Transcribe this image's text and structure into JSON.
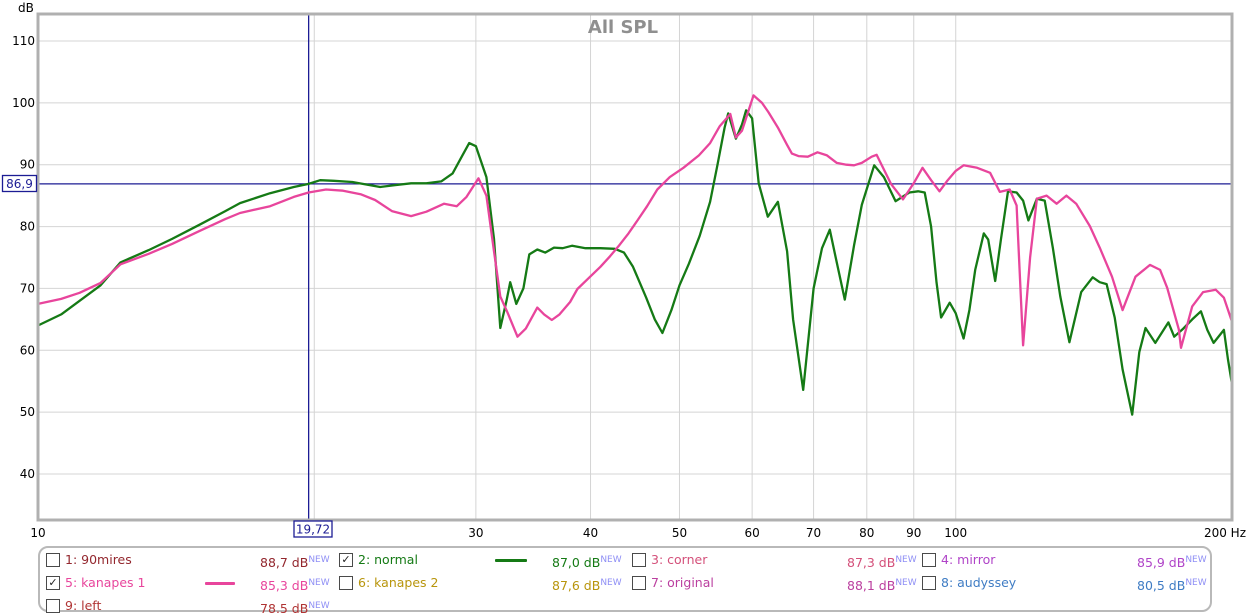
{
  "chart": {
    "title": "All SPL",
    "y_unit": "dB",
    "x_unit_suffix": "Hz"
  },
  "cursor": {
    "freq": 19.72,
    "db": 86.9,
    "freq_label": "19,72",
    "db_label": "86,9"
  },
  "chart_data": {
    "type": "line",
    "x_scale": "log",
    "title": "All SPL",
    "xlabel": "Hz",
    "ylabel": "dB",
    "xlim": [
      10,
      200
    ],
    "ylim_visible": [
      32.6,
      114.4
    ],
    "y_ticks": [
      110,
      100,
      90,
      80,
      70,
      60,
      50,
      40
    ],
    "x_ticks_labeled": [
      10,
      30,
      40,
      50,
      60,
      70,
      80,
      90,
      100,
      200
    ],
    "x_gridlines": [
      20,
      30,
      40,
      50,
      60,
      70,
      80,
      90,
      100,
      200
    ],
    "grid": true,
    "legend_position": "bottom",
    "series": [
      {
        "name": "2: normal",
        "color": "#157a15",
        "points": [
          [
            10,
            64.0
          ],
          [
            10.6,
            65.8
          ],
          [
            11.1,
            68.0
          ],
          [
            11.7,
            70.5
          ],
          [
            12.3,
            74.2
          ],
          [
            13.2,
            76.2
          ],
          [
            14,
            78.0
          ],
          [
            15,
            80.3
          ],
          [
            16,
            82.5
          ],
          [
            16.6,
            83.8
          ],
          [
            17.9,
            85.4
          ],
          [
            19,
            86.4
          ],
          [
            19.72,
            86.9
          ],
          [
            20.3,
            87.5
          ],
          [
            21,
            87.4
          ],
          [
            22,
            87.2
          ],
          [
            23.6,
            86.4
          ],
          [
            24.5,
            86.7
          ],
          [
            25.5,
            87.0
          ],
          [
            26.5,
            87.0
          ],
          [
            27.5,
            87.3
          ],
          [
            28.3,
            88.6
          ],
          [
            29,
            91.5
          ],
          [
            29.5,
            93.5
          ],
          [
            30,
            93.0
          ],
          [
            30.8,
            88.0
          ],
          [
            31.4,
            78.0
          ],
          [
            31.9,
            63.6
          ],
          [
            32.4,
            68.0
          ],
          [
            32.7,
            71.0
          ],
          [
            33.2,
            67.5
          ],
          [
            33.8,
            70.0
          ],
          [
            34.3,
            75.5
          ],
          [
            35,
            76.3
          ],
          [
            35.7,
            75.8
          ],
          [
            36.5,
            76.6
          ],
          [
            37.3,
            76.5
          ],
          [
            38.2,
            76.9
          ],
          [
            39.5,
            76.5
          ],
          [
            41,
            76.5
          ],
          [
            42.5,
            76.4
          ],
          [
            43.5,
            75.8
          ],
          [
            44.5,
            73.5
          ],
          [
            46,
            68.5
          ],
          [
            47,
            65.0
          ],
          [
            47.9,
            62.8
          ],
          [
            49,
            66.5
          ],
          [
            50,
            70.5
          ],
          [
            51.2,
            74.0
          ],
          [
            52.6,
            78.5
          ],
          [
            54,
            84.0
          ],
          [
            55,
            90.0
          ],
          [
            56,
            96.0
          ],
          [
            56.5,
            98.3
          ],
          [
            57.6,
            94.2
          ],
          [
            58.5,
            96.5
          ],
          [
            59.1,
            98.8
          ],
          [
            60,
            97.5
          ],
          [
            61,
            87.0
          ],
          [
            62.4,
            81.6
          ],
          [
            64,
            84.0
          ],
          [
            65.5,
            76.0
          ],
          [
            66.5,
            65.0
          ],
          [
            68.2,
            53.6
          ],
          [
            70,
            70.0
          ],
          [
            71.5,
            76.5
          ],
          [
            72.9,
            79.5
          ],
          [
            74,
            75.0
          ],
          [
            75.7,
            68.2
          ],
          [
            77.5,
            77.0
          ],
          [
            79,
            83.5
          ],
          [
            81.5,
            89.9
          ],
          [
            83.5,
            88.0
          ],
          [
            86,
            84.1
          ],
          [
            89,
            85.5
          ],
          [
            91,
            85.7
          ],
          [
            92.5,
            85.5
          ],
          [
            94,
            80.0
          ],
          [
            95.3,
            71.0
          ],
          [
            96.4,
            65.3
          ],
          [
            98.5,
            67.7
          ],
          [
            100,
            66.0
          ],
          [
            102,
            61.9
          ],
          [
            103.5,
            66.5
          ],
          [
            105,
            73.0
          ],
          [
            107.3,
            78.9
          ],
          [
            108.5,
            77.9
          ],
          [
            110.4,
            71.2
          ],
          [
            112,
            77.9
          ],
          [
            114,
            85.7
          ],
          [
            116.5,
            85.5
          ],
          [
            118.4,
            84.2
          ],
          [
            120,
            81.0
          ],
          [
            122.6,
            84.5
          ],
          [
            125,
            84.2
          ],
          [
            127.6,
            76.5
          ],
          [
            130,
            68.7
          ],
          [
            133,
            61.3
          ],
          [
            137,
            69.4
          ],
          [
            141,
            71.8
          ],
          [
            143.5,
            71.0
          ],
          [
            146,
            70.7
          ],
          [
            149,
            65.3
          ],
          [
            152,
            56.9
          ],
          [
            155.7,
            49.6
          ],
          [
            158.5,
            59.7
          ],
          [
            161,
            63.6
          ],
          [
            165,
            61.2
          ],
          [
            170.5,
            64.5
          ],
          [
            173,
            62.2
          ],
          [
            177,
            63.5
          ],
          [
            181,
            65.0
          ],
          [
            185,
            66.3
          ],
          [
            188,
            63.3
          ],
          [
            191,
            61.2
          ],
          [
            196,
            63.3
          ],
          [
            198,
            58.5
          ],
          [
            200,
            54.5
          ]
        ]
      },
      {
        "name": "5: kanapes 1",
        "color": "#e8459c",
        "points": [
          [
            10,
            67.5
          ],
          [
            10.6,
            68.3
          ],
          [
            11.1,
            69.3
          ],
          [
            11.7,
            70.9
          ],
          [
            12.3,
            73.9
          ],
          [
            13.2,
            75.6
          ],
          [
            14,
            77.2
          ],
          [
            15,
            79.3
          ],
          [
            16,
            81.2
          ],
          [
            16.6,
            82.2
          ],
          [
            17.9,
            83.3
          ],
          [
            19,
            84.8
          ],
          [
            19.72,
            85.5
          ],
          [
            20.6,
            86.0
          ],
          [
            21.5,
            85.8
          ],
          [
            22.5,
            85.2
          ],
          [
            23.3,
            84.3
          ],
          [
            24.3,
            82.5
          ],
          [
            25.5,
            81.7
          ],
          [
            26.5,
            82.4
          ],
          [
            27.7,
            83.7
          ],
          [
            28.6,
            83.3
          ],
          [
            29.3,
            84.8
          ],
          [
            30.2,
            87.8
          ],
          [
            30.8,
            85.0
          ],
          [
            31.4,
            76.0
          ],
          [
            31.9,
            68.7
          ],
          [
            32.5,
            66.0
          ],
          [
            33.3,
            62.2
          ],
          [
            34,
            63.5
          ],
          [
            35,
            66.9
          ],
          [
            35.6,
            65.8
          ],
          [
            36.3,
            64.9
          ],
          [
            37,
            65.8
          ],
          [
            38,
            67.8
          ],
          [
            38.7,
            69.9
          ],
          [
            39.9,
            71.8
          ],
          [
            41,
            73.5
          ],
          [
            42,
            75.2
          ],
          [
            43,
            77.0
          ],
          [
            44,
            78.9
          ],
          [
            45,
            81.0
          ],
          [
            46.1,
            83.3
          ],
          [
            47.3,
            86.0
          ],
          [
            48.8,
            88.0
          ],
          [
            50.5,
            89.5
          ],
          [
            52.5,
            91.5
          ],
          [
            54,
            93.5
          ],
          [
            55.3,
            96.2
          ],
          [
            56.8,
            98.2
          ],
          [
            57.6,
            94.4
          ],
          [
            58.5,
            95.5
          ],
          [
            60.2,
            101.2
          ],
          [
            61.5,
            100.0
          ],
          [
            62.5,
            98.5
          ],
          [
            64,
            96.0
          ],
          [
            65.5,
            93.2
          ],
          [
            66.3,
            91.8
          ],
          [
            67.4,
            91.4
          ],
          [
            69,
            91.3
          ],
          [
            70.7,
            92.0
          ],
          [
            72.4,
            91.5
          ],
          [
            74.2,
            90.3
          ],
          [
            76,
            90.0
          ],
          [
            77.5,
            89.9
          ],
          [
            79,
            90.3
          ],
          [
            81,
            91.3
          ],
          [
            82,
            91.6
          ],
          [
            85,
            86.9
          ],
          [
            87.6,
            84.4
          ],
          [
            90,
            87.0
          ],
          [
            92,
            89.5
          ],
          [
            94,
            87.5
          ],
          [
            96,
            85.7
          ],
          [
            98,
            87.5
          ],
          [
            100,
            89.0
          ],
          [
            102,
            89.9
          ],
          [
            105.5,
            89.5
          ],
          [
            109,
            88.7
          ],
          [
            111.7,
            85.6
          ],
          [
            114.5,
            86.0
          ],
          [
            116.5,
            83.4
          ],
          [
            118.4,
            60.8
          ],
          [
            120.5,
            75.0
          ],
          [
            122.6,
            84.5
          ],
          [
            125.6,
            85.0
          ],
          [
            128.8,
            83.7
          ],
          [
            132,
            85.0
          ],
          [
            135.3,
            83.7
          ],
          [
            140,
            80.1
          ],
          [
            143.5,
            76.6
          ],
          [
            148,
            71.9
          ],
          [
            152,
            66.5
          ],
          [
            157,
            71.9
          ],
          [
            162.8,
            73.8
          ],
          [
            167,
            73.0
          ],
          [
            170,
            70.1
          ],
          [
            175,
            63.4
          ],
          [
            176,
            60.4
          ],
          [
            181,
            67.1
          ],
          [
            186,
            69.4
          ],
          [
            192,
            69.8
          ],
          [
            196,
            68.5
          ],
          [
            200,
            64.6
          ]
        ]
      }
    ]
  },
  "legend": {
    "new_tag": "NEW",
    "new_color": "#8f8ff5",
    "entries": [
      {
        "label": "1: 90mires",
        "value": "88,7 dB",
        "checked": false,
        "color": "#93272e",
        "swatch": null,
        "col": 0,
        "row": 0
      },
      {
        "label": "2: normal",
        "value": "87,0 dB",
        "checked": true,
        "color": "#157a15",
        "swatch": "#157a15",
        "col": 1,
        "row": 0
      },
      {
        "label": "3: corner",
        "value": "87,3 dB",
        "checked": false,
        "color": "#d4507a",
        "swatch": null,
        "col": 2,
        "row": 0
      },
      {
        "label": "4: mirror",
        "value": "85,9 dB",
        "checked": false,
        "color": "#b044c8",
        "swatch": null,
        "col": 3,
        "row": 0
      },
      {
        "label": "5: kanapes 1",
        "value": "85,3 dB",
        "checked": true,
        "color": "#e8459c",
        "swatch": "#e8459c",
        "col": 0,
        "row": 1
      },
      {
        "label": "6: kanapes 2",
        "value": "87,6 dB",
        "checked": false,
        "color": "#b8950c",
        "swatch": null,
        "col": 1,
        "row": 1
      },
      {
        "label": "7: original",
        "value": "88,1 dB",
        "checked": false,
        "color": "#bb3f9f",
        "swatch": null,
        "col": 2,
        "row": 1
      },
      {
        "label": "8: audyssey",
        "value": "80,5 dB",
        "checked": false,
        "color": "#3f7cc4",
        "swatch": null,
        "col": 3,
        "row": 1
      },
      {
        "label": "9: left",
        "value": "78,5 dB",
        "checked": false,
        "color": "#b03434",
        "swatch": null,
        "col": 0,
        "row": 2
      }
    ]
  },
  "colors": {
    "grid": "#d4d4d4",
    "plot_border": "#b0b0b0",
    "cursor": "#1c1c94",
    "title": "#8f8f8f"
  }
}
